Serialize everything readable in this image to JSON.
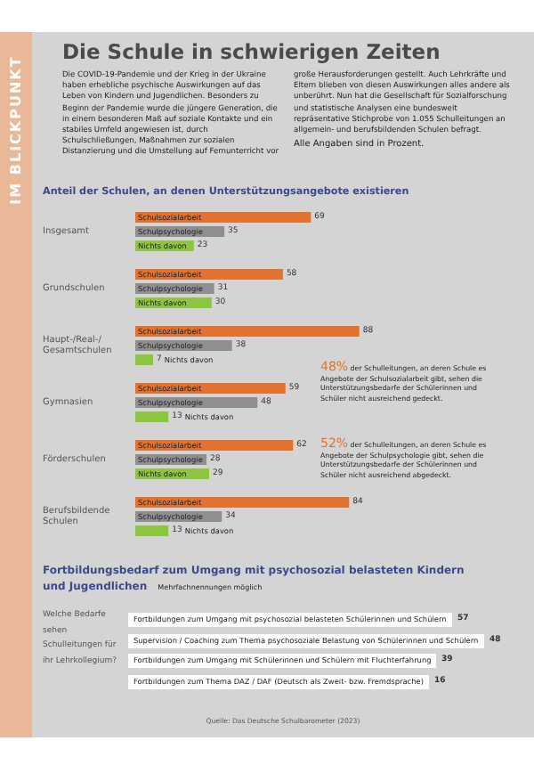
{
  "chart_data": [
    {
      "type": "other",
      "title": "Die Schule in schwierigen Zeiten",
      "annotations": [
        "IM BLICKPUNKT",
        "Die COVID-19-Pandemie und der Krieg in der Ukraine haben erhebliche psychische Auswirkungen auf das Leben von Kindern und Jugendlichen. Besonders zu Beginn der Pandemie wurde die jüngere Generation, die in einem besonderen Maß auf soziale Kontakte und ein stabiles Umfeld angewiesen ist, durch Schulschließungen, Maßnahmen zur sozialen Distanzierung und die Umstellung auf Fernunterricht vor große Herausforderungen gestellt. Auch Lehrkräfte und Eltern blieben von diesen Auswirkungen alles andere als unberührt. Nun hat die Gesellschaft für Sozialforschung und statistische Analysen eine bundesweit repräsentative Stichprobe von 1.055 Schulleitungen an allgemein- und berufsbildenden Schulen befragt.",
        "Alle Angaben sind in Prozent."
      ]
    },
    {
      "type": "bar",
      "orientation": "horizontal",
      "title": "Anteil der Schulen, an denen Unterstützungsangebote existieren",
      "categories": [
        "Insgesamt",
        "Grundschulen",
        "Haupt-/Real-/ Gesamtschulen",
        "Gymnasien",
        "Förderschulen",
        "Berufsbildende Schulen"
      ],
      "series": [
        {
          "name": "Schulsozialarbeit",
          "color": "#e0732f",
          "values": [
            69,
            58,
            88,
            59,
            62,
            84
          ]
        },
        {
          "name": "Schulpsychologie",
          "color": "#8f8f8f",
          "values": [
            35,
            31,
            38,
            48,
            28,
            34
          ]
        },
        {
          "name": "Nichts davon",
          "color": "#8cc63f",
          "values": [
            23,
            30,
            7,
            13,
            29,
            13
          ]
        }
      ],
      "data_labels": true,
      "annotations": [
        "48% der Schulleitungen, an deren Schule es Angebote der Schulsozialarbeit gibt, sehen die Unterstützungsbedarfe der Schülerinnen und Schüler nicht ausreichend gedeckt.",
        "52% der Schulleitungen, an deren Schule es Angebote der Schulpsychologie gibt, sehen die Unterstützungsbedarfe der Schülerinnen und Schüler nicht ausreichend abgedeckt."
      ]
    },
    {
      "type": "other",
      "title": "Fortbildungsbedarf zum Umgang mit psychosozial belasteten Kindern und Jugendlichen",
      "subtitle": "Mehrfachnennungen möglich",
      "categories": [
        "Fortbildungen zum Umgang mit psychosozial belasteten Schülerinnen und Schülern",
        "Supervision / Coaching zum Thema psychosoziale Belastung von Schülerinnen und Schülern",
        "Fortbildungen zum Umgang mit Schülerinnen und Schülern mit Fluchterfahrung",
        "Fortbildungen zum Thema DAZ / DAF (Deutsch als Zweit- bzw. Fremdsprache)"
      ],
      "values": [
        57,
        48,
        39,
        16
      ],
      "data_labels": true,
      "annotations": [
        "Welche Bedarfe sehen Schulleitungen für ihr Lehrkollegium?",
        "Quelle: Das Deutsche Schulbarometer (2023)"
      ]
    }
  ]
}
